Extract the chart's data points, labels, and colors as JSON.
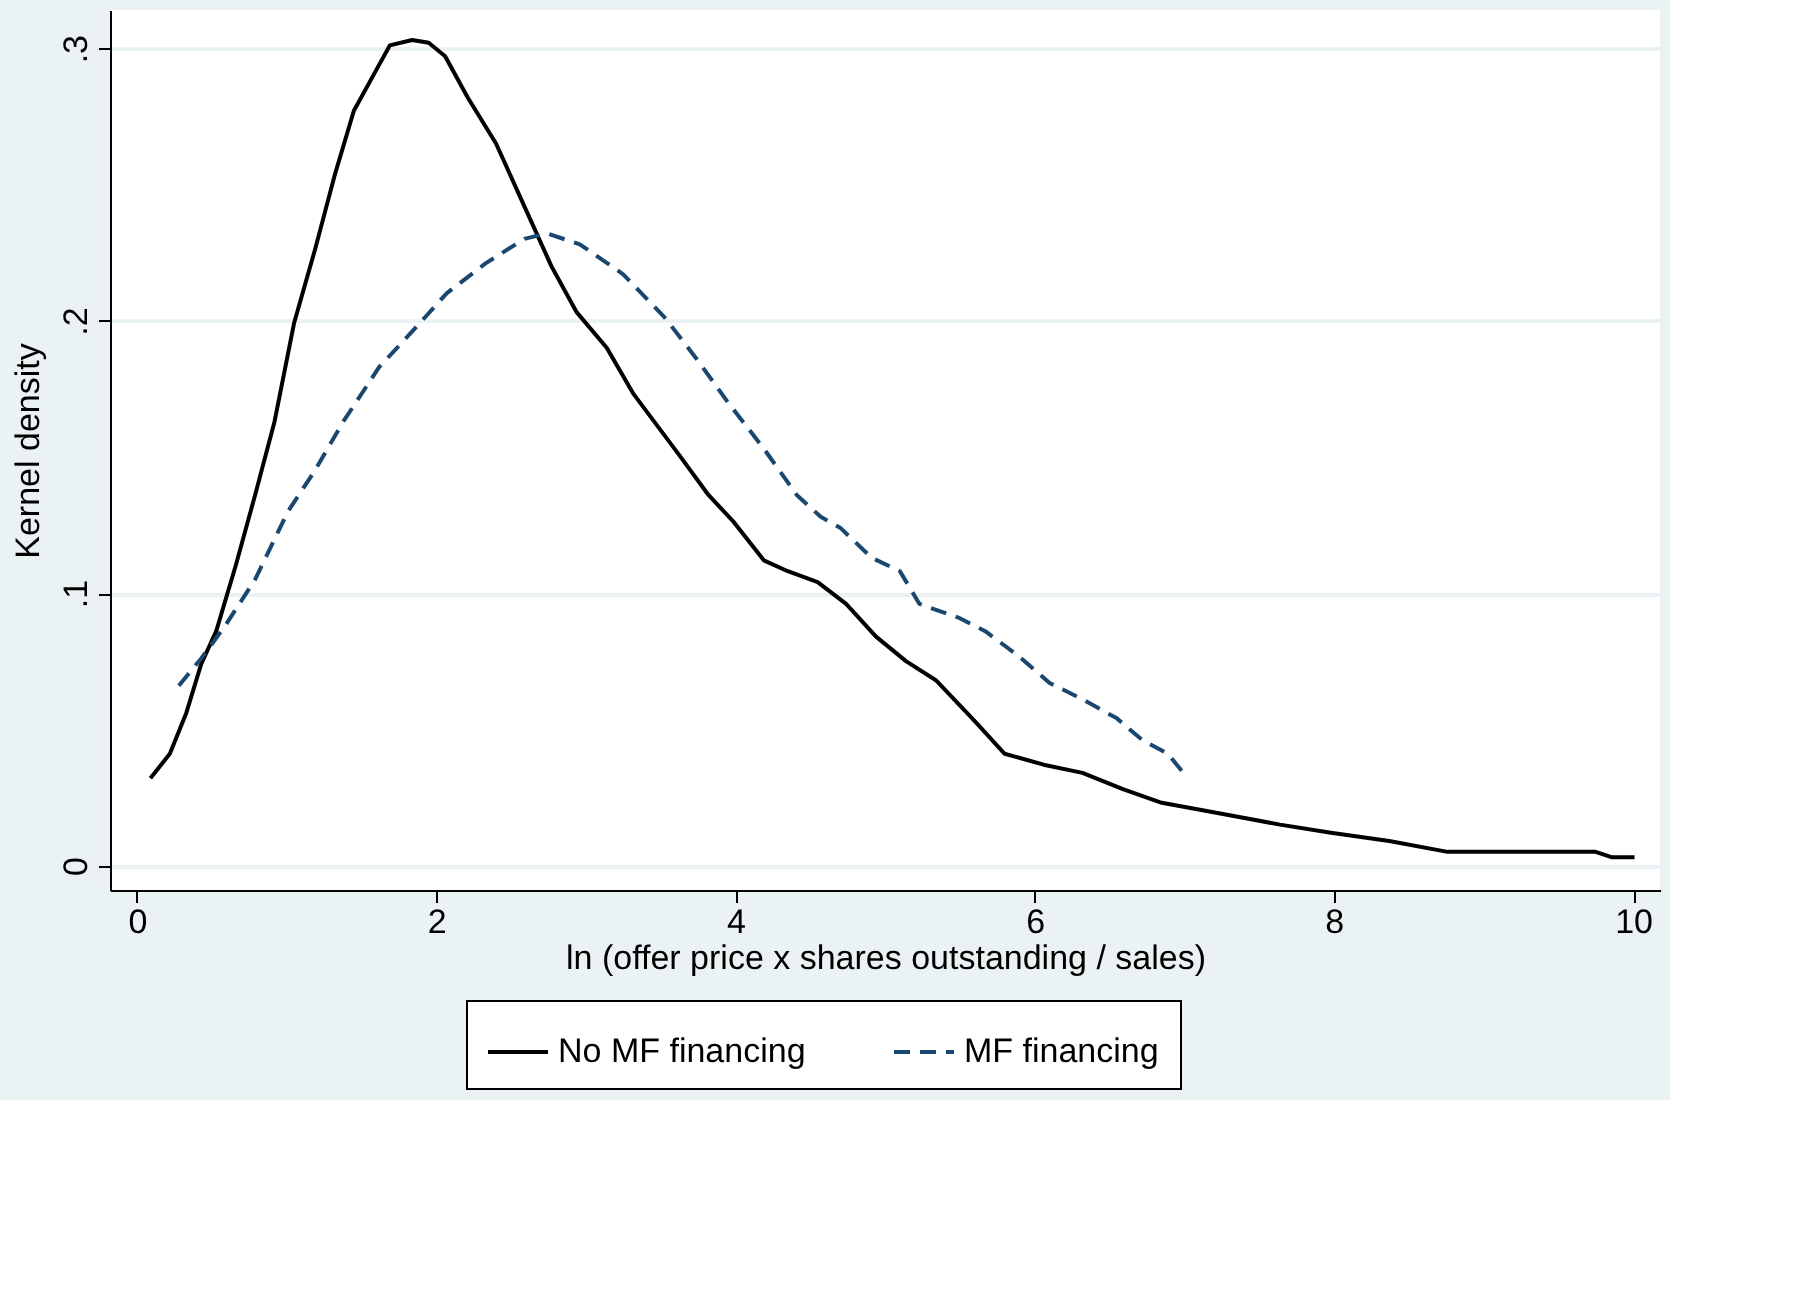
{
  "chart_data": {
    "type": "line",
    "xlabel": "ln (offer price x shares outstanding / sales)",
    "ylabel": "Kernel density",
    "xlim": [
      -0.18,
      10.18
    ],
    "xticks": [
      0,
      2,
      4,
      6,
      8,
      10
    ],
    "ylim": [
      -0.009,
      0.314
    ],
    "yticks": [
      {
        "value": 0,
        "label": "0"
      },
      {
        "value": 0.1,
        "label": ".1"
      },
      {
        "value": 0.2,
        "label": ".2"
      },
      {
        "value": 0.3,
        "label": ".3"
      }
    ],
    "grid": "y",
    "legend": "bottom",
    "series": [
      {
        "name": "No MF financing",
        "color": "#000000",
        "line_style": "solid",
        "x": [
          0.09,
          0.22,
          0.33,
          0.43,
          0.53,
          0.66,
          0.79,
          0.92,
          1.05,
          1.19,
          1.32,
          1.45,
          1.58,
          1.69,
          1.84,
          1.95,
          2.06,
          2.21,
          2.4,
          2.54,
          2.77,
          2.94,
          3.14,
          3.32,
          3.62,
          3.82,
          3.99,
          4.19,
          4.35,
          4.55,
          4.74,
          4.94,
          5.14,
          5.34,
          5.6,
          5.8,
          6.06,
          6.32,
          6.59,
          6.85,
          7.25,
          7.64,
          7.98,
          8.37,
          8.76,
          9.75,
          9.86,
          10.01
        ],
        "values": [
          0.032,
          0.041,
          0.056,
          0.074,
          0.086,
          0.11,
          0.136,
          0.163,
          0.199,
          0.226,
          0.253,
          0.277,
          0.29,
          0.301,
          0.303,
          0.302,
          0.297,
          0.282,
          0.265,
          0.248,
          0.22,
          0.203,
          0.19,
          0.173,
          0.151,
          0.136,
          0.126,
          0.112,
          0.108,
          0.104,
          0.096,
          0.084,
          0.075,
          0.068,
          0.053,
          0.041,
          0.037,
          0.034,
          0.028,
          0.023,
          0.019,
          0.015,
          0.012,
          0.009,
          0.005,
          0.005,
          0.003,
          0.003
        ]
      },
      {
        "name": "MF financing",
        "color": "#1a476f",
        "line_style": "dashed",
        "x": [
          0.28,
          0.43,
          0.59,
          0.79,
          1.01,
          1.19,
          1.38,
          1.62,
          1.84,
          2.07,
          2.33,
          2.59,
          2.74,
          2.96,
          3.25,
          3.53,
          3.74,
          3.95,
          4.19,
          4.41,
          4.57,
          4.7,
          4.91,
          5.1,
          5.23,
          5.49,
          5.67,
          5.89,
          6.1,
          6.32,
          6.55,
          6.72,
          6.89,
          7.01
        ],
        "values": [
          0.066,
          0.076,
          0.088,
          0.105,
          0.13,
          0.145,
          0.163,
          0.183,
          0.196,
          0.21,
          0.221,
          0.23,
          0.232,
          0.228,
          0.217,
          0.201,
          0.186,
          0.17,
          0.153,
          0.136,
          0.128,
          0.124,
          0.113,
          0.108,
          0.096,
          0.091,
          0.086,
          0.077,
          0.067,
          0.061,
          0.054,
          0.046,
          0.041,
          0.033
        ]
      }
    ]
  }
}
